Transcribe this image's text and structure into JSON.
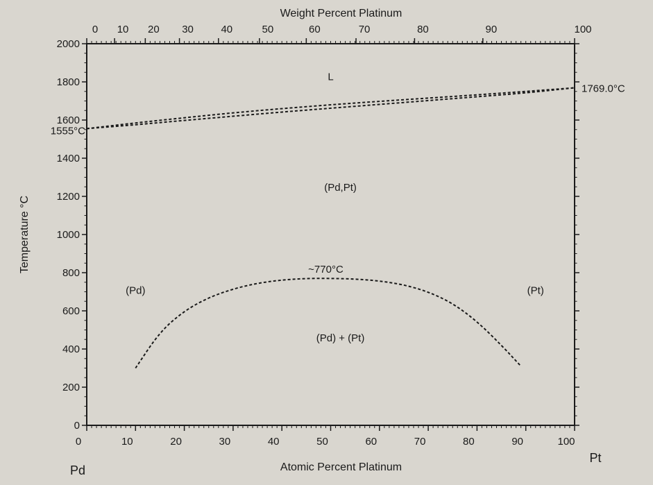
{
  "chart_data": {
    "type": "line",
    "title": "",
    "xlabel": "Atomic Percent Platinum",
    "x2label": "Weight Percent Platinum",
    "ylabel": "Temperature °C",
    "xlim": [
      0,
      100
    ],
    "ylim": [
      0,
      2000
    ],
    "x_ticks": [
      "0",
      "10",
      "20",
      "30",
      "40",
      "50",
      "60",
      "70",
      "80",
      "90",
      "100"
    ],
    "y_ticks": [
      "0",
      "200",
      "400",
      "600",
      "800",
      "1000",
      "1200",
      "1400",
      "1600",
      "1800",
      "2000"
    ],
    "x2_ticks": [
      "0",
      "10",
      "20",
      "30",
      "40",
      "50",
      "60",
      "70",
      "80",
      "90",
      "100"
    ],
    "x2_tick_positions_at_pct": [
      0,
      5.7,
      12.0,
      19.0,
      27.0,
      35.4,
      45.0,
      55.2,
      67.2,
      81.2,
      100
    ],
    "left_end_label": "Pd",
    "right_end_label": "Pt",
    "melt_pd_label": "1555°C",
    "melt_pt_label": "1769.0°C",
    "grid": false,
    "series": [
      {
        "style": "dashed",
        "x": [
          0,
          10,
          20,
          30,
          40,
          50,
          60,
          70,
          80,
          90,
          100
        ],
        "y": [
          1555,
          1585,
          1612,
          1638,
          1660,
          1680,
          1698,
          1715,
          1732,
          1750,
          1769
        ]
      },
      {
        "style": "dashed",
        "x": [
          0,
          10,
          20,
          30,
          40,
          50,
          60,
          70,
          80,
          90,
          100
        ],
        "y": [
          1555,
          1575,
          1598,
          1620,
          1642,
          1662,
          1682,
          1702,
          1722,
          1742,
          1769
        ]
      },
      {
        "style": "dashed",
        "x": [
          10,
          15,
          20,
          25,
          30,
          35,
          40,
          45,
          50,
          55,
          60,
          65,
          70,
          75,
          80,
          85,
          89
        ],
        "y": [
          300,
          490,
          600,
          670,
          715,
          745,
          762,
          770,
          770,
          767,
          757,
          737,
          700,
          640,
          545,
          420,
          310
        ]
      }
    ],
    "annotations": [
      {
        "text": "L",
        "x": 50,
        "y": 1810
      },
      {
        "text": "(Pd,Pt)",
        "x": 52,
        "y": 1230
      },
      {
        "text": "~770°C",
        "x": 49,
        "y": 800
      },
      {
        "text": "(Pd)",
        "x": 10,
        "y": 690
      },
      {
        "text": "(Pt)",
        "x": 92,
        "y": 690
      },
      {
        "text": "(Pd) + (Pt)",
        "x": 52,
        "y": 440
      }
    ]
  }
}
